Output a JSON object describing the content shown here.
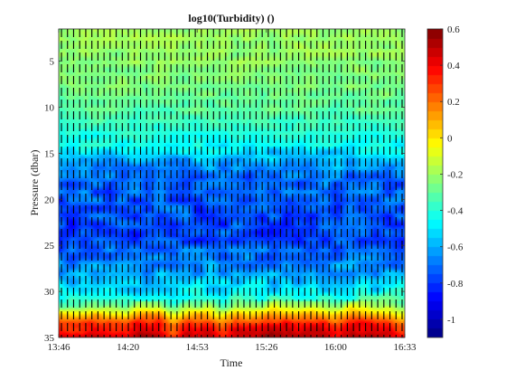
{
  "chart_data": {
    "type": "heatmap",
    "title": "log10(Turbidity) ()",
    "xlabel": "Time",
    "ylabel": "Pressure (dbar)",
    "x_ticks": [
      "13:46",
      "14:20",
      "14:53",
      "15:26",
      "16:00",
      "16:33"
    ],
    "y_ticks": [
      5,
      10,
      15,
      20,
      25,
      30,
      35
    ],
    "xlim": [
      "13:46",
      "16:33"
    ],
    "ylim": [
      35,
      1.5
    ],
    "y_reversed": true,
    "colorbar": {
      "colormap": "jet",
      "range": [
        -1.1,
        0.6
      ],
      "ticks": [
        0.6,
        0.4,
        0.2,
        0,
        -0.2,
        -0.4,
        -0.6,
        -0.8,
        -1
      ],
      "tick_labels": [
        "0.6",
        "0.4",
        "0.2",
        "0",
        "-0.2",
        "-0.4",
        "-0.6",
        "-0.8",
        "-1"
      ]
    },
    "depth_profile": {
      "pressure": [
        1.5,
        5,
        10,
        14,
        16,
        18,
        20,
        22,
        24,
        26,
        28,
        30,
        31.5,
        32.5,
        33.5,
        34.5,
        35
      ],
      "value": [
        -0.2,
        -0.22,
        -0.3,
        -0.45,
        -0.62,
        -0.72,
        -0.74,
        -0.76,
        -0.78,
        -0.7,
        -0.6,
        -0.48,
        -0.25,
        0.05,
        0.3,
        0.4,
        0.45
      ]
    },
    "cast_count": 57,
    "grid": false
  }
}
